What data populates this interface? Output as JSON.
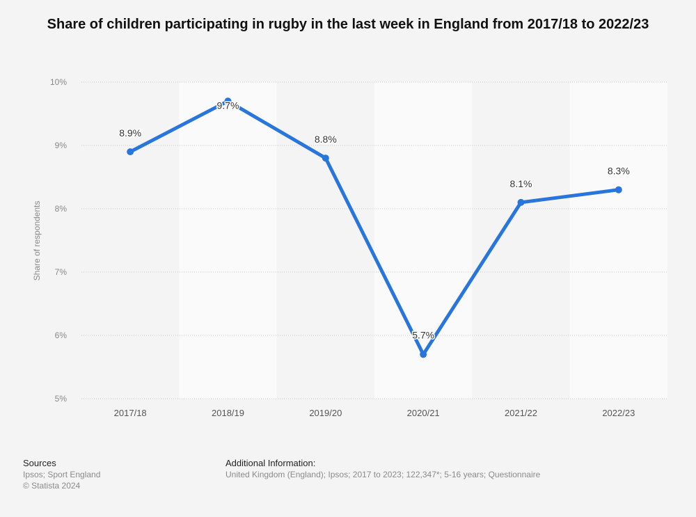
{
  "chart_data": {
    "type": "line",
    "title": "Share of children participating in rugby in the last week in England from 2017/18 to 2022/23",
    "xlabel": "",
    "ylabel": "Share of respondents",
    "categories": [
      "2017/18",
      "2018/19",
      "2019/20",
      "2020/21",
      "2021/22",
      "2022/23"
    ],
    "series": [
      {
        "name": "Share of respondents",
        "values": [
          8.9,
          9.7,
          8.8,
          5.7,
          8.1,
          8.3
        ],
        "labels": [
          "8.9%",
          "9.7%",
          "8.8%",
          "5.7%",
          "8.1%",
          "8.3%"
        ],
        "color": "#2876dd"
      }
    ],
    "ylim": [
      5,
      10
    ],
    "yticks": [
      5,
      6,
      7,
      8,
      9,
      10
    ],
    "ytick_labels": [
      "5%",
      "6%",
      "7%",
      "8%",
      "9%",
      "10%"
    ],
    "grid": true,
    "legend": "none"
  },
  "footer": {
    "sources_heading": "Sources",
    "sources_line1": "Ipsos; Sport England",
    "sources_line2": "© Statista 2024",
    "additional_heading": "Additional Information:",
    "additional_text": "United Kingdom (England); Ipsos; 2017 to 2023; 122,347*; 5-16 years; Questionnaire"
  }
}
